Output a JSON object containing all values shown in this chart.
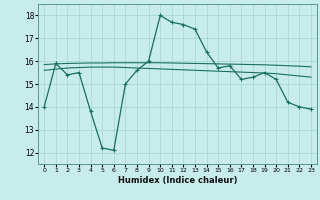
{
  "title": "",
  "xlabel": "Humidex (Indice chaleur)",
  "bg_color": "#c8ecec",
  "grid_color": "#a8d8d8",
  "line_color": "#1a6e5e",
  "xlim": [
    -0.5,
    23.5
  ],
  "ylim": [
    11.5,
    18.5
  ],
  "xticks": [
    0,
    1,
    2,
    3,
    4,
    5,
    6,
    7,
    8,
    9,
    10,
    11,
    12,
    13,
    14,
    15,
    16,
    17,
    18,
    19,
    20,
    21,
    22,
    23
  ],
  "yticks": [
    12,
    13,
    14,
    15,
    16,
    17,
    18
  ],
  "series1_x": [
    0,
    1,
    2,
    3,
    4,
    5,
    6,
    7,
    8,
    9,
    10,
    11,
    12,
    13,
    14,
    15,
    16,
    17,
    18,
    19,
    20,
    21,
    22,
    23
  ],
  "series1_y": [
    14.0,
    15.9,
    15.4,
    15.5,
    13.8,
    12.2,
    12.1,
    15.0,
    15.6,
    16.0,
    18.0,
    17.7,
    17.6,
    17.4,
    16.4,
    15.7,
    15.8,
    15.2,
    15.3,
    15.5,
    15.2,
    14.2,
    14.0,
    13.9
  ],
  "series2_x": [
    0,
    1,
    2,
    3,
    4,
    5,
    6,
    7,
    8,
    9,
    10,
    11,
    12,
    13,
    14,
    15,
    16,
    17,
    18,
    19,
    20,
    21,
    22,
    23
  ],
  "series2_y": [
    15.6,
    15.65,
    15.7,
    15.72,
    15.74,
    15.74,
    15.74,
    15.72,
    15.7,
    15.68,
    15.66,
    15.64,
    15.62,
    15.6,
    15.58,
    15.56,
    15.54,
    15.52,
    15.5,
    15.48,
    15.45,
    15.4,
    15.35,
    15.3
  ],
  "series3_x": [
    0,
    1,
    2,
    3,
    4,
    5,
    6,
    7,
    8,
    9,
    10,
    11,
    12,
    13,
    14,
    15,
    16,
    17,
    18,
    19,
    20,
    21,
    22,
    23
  ],
  "series3_y": [
    15.85,
    15.88,
    15.9,
    15.91,
    15.92,
    15.92,
    15.93,
    15.93,
    15.93,
    15.93,
    15.93,
    15.92,
    15.91,
    15.9,
    15.89,
    15.88,
    15.87,
    15.86,
    15.85,
    15.84,
    15.82,
    15.8,
    15.78,
    15.75
  ]
}
